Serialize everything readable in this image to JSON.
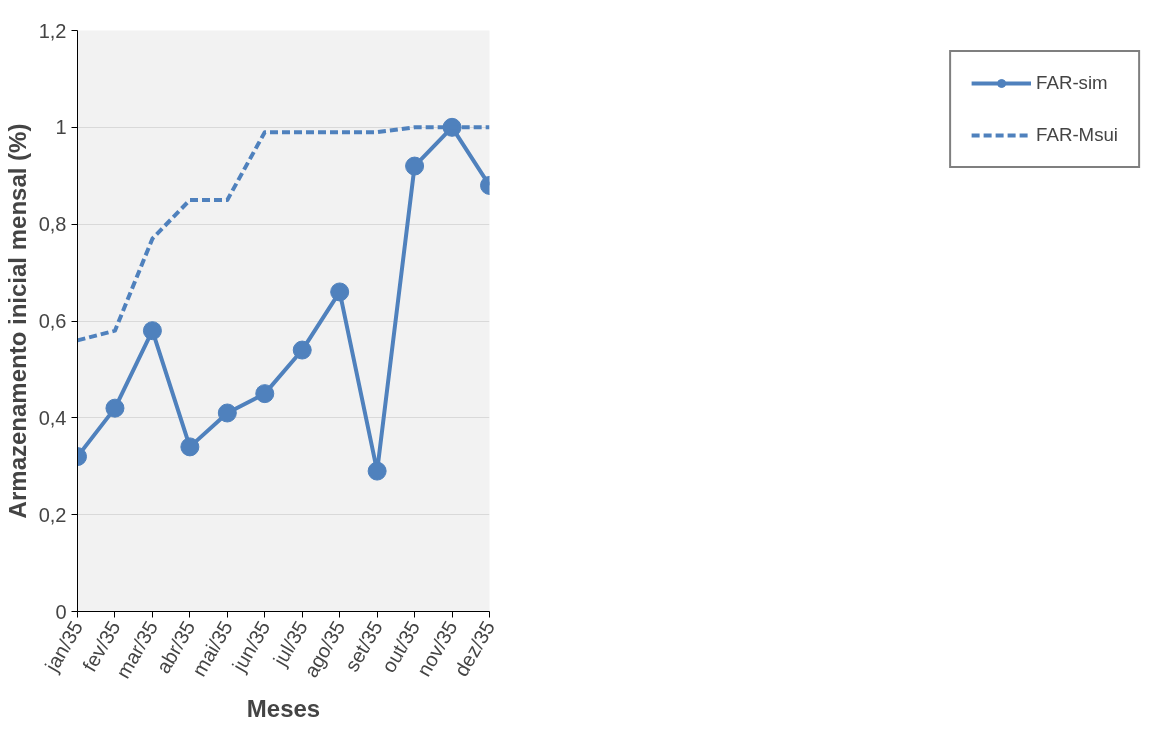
{
  "chart_data": {
    "type": "line",
    "xlabel": "Meses",
    "ylabel": "Armazenamento inicial mensal (%)",
    "categories": [
      "jan/35",
      "fev/35",
      "mar/35",
      "abr/35",
      "mai/35",
      "jun/35",
      "jul/35",
      "ago/35",
      "set/35",
      "out/35",
      "nov/35",
      "dez/35"
    ],
    "series": [
      {
        "name": "FAR-sim",
        "color": "#4f81bd",
        "marker": "circle",
        "line_style": "solid",
        "values": [
          0.32,
          0.42,
          0.58,
          0.34,
          0.41,
          0.45,
          0.54,
          0.66,
          0.29,
          0.92,
          1.0,
          0.88
        ]
      },
      {
        "name": "FAR-Msui",
        "color": "#4f81bd",
        "marker": "none",
        "line_style": "dashed",
        "values": [
          0.56,
          0.58,
          0.77,
          0.85,
          0.85,
          0.99,
          0.99,
          0.99,
          0.99,
          1.0,
          1.0,
          1.0
        ]
      }
    ],
    "ylim": [
      0,
      1.2
    ],
    "yticks": [
      0,
      {
        "value": 0.2,
        "label": "0,2"
      },
      {
        "value": 0.4,
        "label": "0,4"
      },
      {
        "value": 0.6,
        "label": "0,6"
      },
      {
        "value": 0.8,
        "label": "0,8"
      },
      1,
      {
        "value": 1.2,
        "label": "1,2"
      }
    ],
    "grid": "y",
    "legend": "top right"
  }
}
